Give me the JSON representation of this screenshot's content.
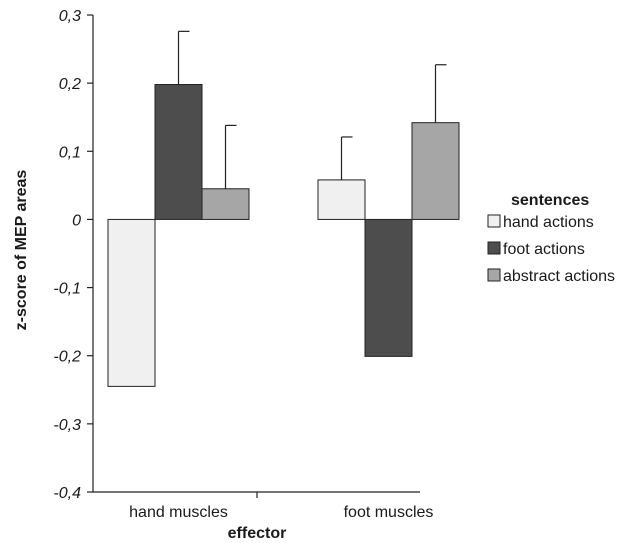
{
  "chart_data": {
    "type": "bar",
    "title": "",
    "xlabel": "effector",
    "ylabel": "z-score of MEP areas",
    "categories": [
      "hand muscles",
      "foot muscles"
    ],
    "ylim": [
      -0.4,
      0.3
    ],
    "yticks": [
      0.3,
      0.2,
      0.1,
      0,
      -0.1,
      -0.2,
      -0.3,
      -0.4
    ],
    "ytick_labels": [
      "0,3",
      "0,2",
      "0,1",
      "0",
      "-0,1",
      "-0,2",
      "-0,3",
      "-0,4"
    ],
    "grid": false,
    "legend": {
      "title": "sentences",
      "position": "right"
    },
    "series": [
      {
        "name": "hand actions",
        "color": "#f0f0f0",
        "values": [
          -0.245,
          0.058
        ],
        "error": [
          0.078,
          0.063
        ]
      },
      {
        "name": "foot actions",
        "color": "#4d4d4d",
        "values": [
          0.198,
          -0.201
        ],
        "error": [
          0.078,
          0.063
        ]
      },
      {
        "name": "abstract actions",
        "color": "#a6a6a6",
        "values": [
          0.045,
          0.142
        ],
        "error": [
          0.093,
          0.085
        ]
      }
    ]
  }
}
